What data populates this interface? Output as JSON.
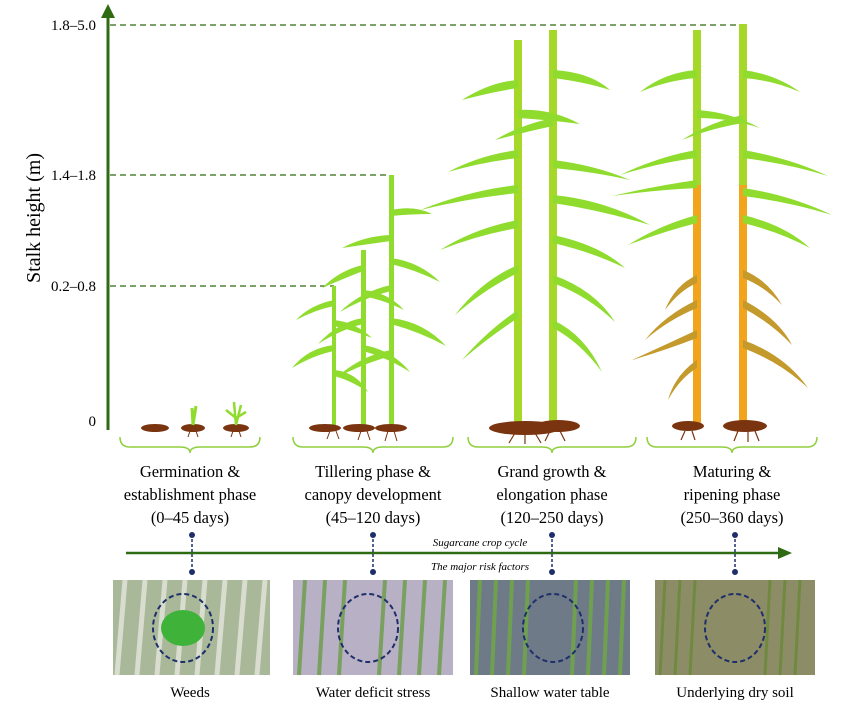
{
  "y_axis": {
    "title": "Stalk height (m)",
    "ticks": [
      "1.8–5.0",
      "1.4–1.8",
      "0.2–0.8",
      "0"
    ]
  },
  "phases": [
    {
      "line1": "Germination &",
      "line2": "establishment phase",
      "line3": "(0–45 days)"
    },
    {
      "line1": "Tillering phase &",
      "line2": "canopy development",
      "line3": "(45–120 days)"
    },
    {
      "line1": "Grand growth &",
      "line2": "elongation phase",
      "line3": "(120–250 days)"
    },
    {
      "line1": "Maturing &",
      "line2": "ripening phase",
      "line3": "(250–360 days)"
    }
  ],
  "crop_cycle_label": "Sugarcane crop cycle",
  "risk_factors_label": "The major risk factors",
  "risks": [
    "Weeds",
    "Water deficit stress",
    "Shallow water table",
    "Underlying dry soil"
  ],
  "colors": {
    "axis_green": "#2f6b12",
    "leaf_green": "#8fdc2e",
    "stalk_green": "#a6d82a",
    "stalk_orange": "#f2a51c",
    "dry_leaf": "#c49a2c",
    "soil": "#7a3410",
    "marker_navy": "#1f2f6b"
  }
}
